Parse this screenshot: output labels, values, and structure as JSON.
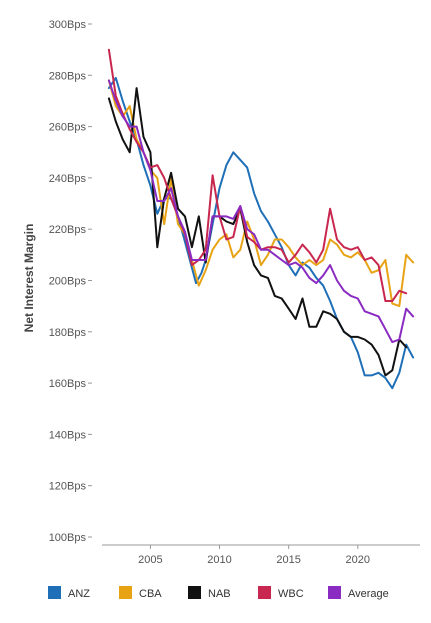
{
  "chart_data": {
    "type": "line",
    "title": "",
    "xlabel": "",
    "ylabel": "Net Interest Margin",
    "ylim": [
      100,
      300
    ],
    "xlim": [
      2001.5,
      2024.5
    ],
    "y_ticks": [
      100,
      120,
      140,
      160,
      180,
      200,
      220,
      240,
      260,
      280,
      300
    ],
    "y_tick_labels": [
      "100Bps",
      "120Bps",
      "140Bps",
      "160Bps",
      "180Bps",
      "200Bps",
      "220Bps",
      "240Bps",
      "260Bps",
      "280Bps",
      "300Bps"
    ],
    "x_ticks": [
      2005,
      2010,
      2015,
      2020
    ],
    "x_tick_labels": [
      "2005",
      "2010",
      "2015",
      "2020"
    ],
    "grid": false,
    "legend_position": "bottom",
    "series": [
      {
        "name": "ANZ",
        "color": "#1f6fb8",
        "points": [
          [
            2002.0,
            275
          ],
          [
            2002.5,
            279
          ],
          [
            2003.0,
            270
          ],
          [
            2003.5,
            262
          ],
          [
            2004.0,
            255
          ],
          [
            2004.5,
            245
          ],
          [
            2005.0,
            237
          ],
          [
            2005.5,
            226
          ],
          [
            2006.0,
            232
          ],
          [
            2006.5,
            232
          ],
          [
            2007.0,
            225
          ],
          [
            2007.5,
            215
          ],
          [
            2008.0,
            205
          ],
          [
            2008.3,
            199
          ],
          [
            2008.7,
            203
          ],
          [
            2009.0,
            208
          ],
          [
            2009.5,
            222
          ],
          [
            2010.0,
            236
          ],
          [
            2010.5,
            245
          ],
          [
            2011.0,
            250
          ],
          [
            2011.5,
            247
          ],
          [
            2012.0,
            244
          ],
          [
            2012.5,
            234
          ],
          [
            2013.0,
            227
          ],
          [
            2013.5,
            223
          ],
          [
            2014.0,
            218
          ],
          [
            2014.5,
            213
          ],
          [
            2015.0,
            206
          ],
          [
            2015.5,
            202
          ],
          [
            2016.0,
            207
          ],
          [
            2016.5,
            205
          ],
          [
            2017.0,
            201
          ],
          [
            2017.5,
            198
          ],
          [
            2018.0,
            192
          ],
          [
            2018.5,
            185
          ],
          [
            2019.0,
            180
          ],
          [
            2019.5,
            178
          ],
          [
            2020.0,
            172
          ],
          [
            2020.5,
            163
          ],
          [
            2021.0,
            163
          ],
          [
            2021.5,
            164
          ],
          [
            2022.0,
            162
          ],
          [
            2022.5,
            158
          ],
          [
            2023.0,
            164
          ],
          [
            2023.5,
            175
          ],
          [
            2024.0,
            170
          ]
        ]
      },
      {
        "name": "CBA",
        "color": "#e8a315",
        "points": [
          [
            2002.0,
            278
          ],
          [
            2002.5,
            268
          ],
          [
            2003.0,
            264
          ],
          [
            2003.5,
            268
          ],
          [
            2004.0,
            255
          ],
          [
            2004.5,
            250
          ],
          [
            2005.0,
            243
          ],
          [
            2005.5,
            240
          ],
          [
            2006.0,
            222
          ],
          [
            2006.5,
            240
          ],
          [
            2007.0,
            222
          ],
          [
            2007.5,
            218
          ],
          [
            2008.0,
            208
          ],
          [
            2008.5,
            198
          ],
          [
            2009.0,
            204
          ],
          [
            2009.5,
            212
          ],
          [
            2010.0,
            216
          ],
          [
            2010.5,
            218
          ],
          [
            2011.0,
            209
          ],
          [
            2011.5,
            212
          ],
          [
            2012.0,
            223
          ],
          [
            2012.5,
            216
          ],
          [
            2013.0,
            206
          ],
          [
            2013.5,
            210
          ],
          [
            2014.0,
            216
          ],
          [
            2014.5,
            216
          ],
          [
            2015.0,
            213
          ],
          [
            2015.5,
            209
          ],
          [
            2016.0,
            206
          ],
          [
            2016.5,
            208
          ],
          [
            2017.0,
            206
          ],
          [
            2017.5,
            208
          ],
          [
            2018.0,
            216
          ],
          [
            2018.5,
            214
          ],
          [
            2019.0,
            210
          ],
          [
            2019.5,
            209
          ],
          [
            2020.0,
            211
          ],
          [
            2020.5,
            208
          ],
          [
            2021.0,
            203
          ],
          [
            2021.5,
            204
          ],
          [
            2022.0,
            208
          ],
          [
            2022.5,
            191
          ],
          [
            2023.0,
            190
          ],
          [
            2023.5,
            210
          ],
          [
            2024.0,
            207
          ]
        ]
      },
      {
        "name": "NAB",
        "color": "#111111",
        "points": [
          [
            2002.0,
            271
          ],
          [
            2002.5,
            262
          ],
          [
            2003.0,
            255
          ],
          [
            2003.5,
            250
          ],
          [
            2004.0,
            275
          ],
          [
            2004.5,
            256
          ],
          [
            2005.0,
            250
          ],
          [
            2005.5,
            213
          ],
          [
            2006.0,
            232
          ],
          [
            2006.5,
            242
          ],
          [
            2007.0,
            228
          ],
          [
            2007.5,
            225
          ],
          [
            2008.0,
            213
          ],
          [
            2008.5,
            225
          ],
          [
            2009.0,
            207
          ],
          [
            2009.5,
            225
          ],
          [
            2010.0,
            225
          ],
          [
            2010.5,
            223
          ],
          [
            2011.0,
            222
          ],
          [
            2011.5,
            228
          ],
          [
            2012.0,
            215
          ],
          [
            2012.5,
            206
          ],
          [
            2013.0,
            202
          ],
          [
            2013.5,
            201
          ],
          [
            2014.0,
            194
          ],
          [
            2014.5,
            193
          ],
          [
            2015.0,
            189
          ],
          [
            2015.5,
            185
          ],
          [
            2016.0,
            193
          ],
          [
            2016.5,
            182
          ],
          [
            2017.0,
            182
          ],
          [
            2017.5,
            188
          ],
          [
            2018.0,
            187
          ],
          [
            2018.5,
            185
          ],
          [
            2019.0,
            180
          ],
          [
            2019.5,
            178
          ],
          [
            2020.0,
            178
          ],
          [
            2020.5,
            177
          ],
          [
            2021.0,
            175
          ],
          [
            2021.5,
            171
          ],
          [
            2022.0,
            163
          ],
          [
            2022.5,
            165
          ],
          [
            2023.0,
            177
          ],
          [
            2023.5,
            174
          ]
        ]
      },
      {
        "name": "WBC",
        "color": "#c8284f",
        "points": [
          [
            2002.0,
            290
          ],
          [
            2002.5,
            272
          ],
          [
            2003.0,
            265
          ],
          [
            2003.5,
            259
          ],
          [
            2004.0,
            254
          ],
          [
            2004.5,
            250
          ],
          [
            2005.0,
            244
          ],
          [
            2005.5,
            245
          ],
          [
            2006.0,
            240
          ],
          [
            2006.5,
            232
          ],
          [
            2007.0,
            225
          ],
          [
            2007.5,
            218
          ],
          [
            2008.0,
            206
          ],
          [
            2008.5,
            208
          ],
          [
            2009.0,
            212
          ],
          [
            2009.5,
            241
          ],
          [
            2010.0,
            225
          ],
          [
            2010.5,
            216
          ],
          [
            2011.0,
            217
          ],
          [
            2011.5,
            229
          ],
          [
            2012.0,
            217
          ],
          [
            2012.5,
            215
          ],
          [
            2013.0,
            212
          ],
          [
            2013.5,
            213
          ],
          [
            2014.0,
            213
          ],
          [
            2014.5,
            212
          ],
          [
            2015.0,
            207
          ],
          [
            2015.5,
            210
          ],
          [
            2016.0,
            214
          ],
          [
            2016.5,
            211
          ],
          [
            2017.0,
            207
          ],
          [
            2017.5,
            212
          ],
          [
            2018.0,
            228
          ],
          [
            2018.5,
            216
          ],
          [
            2019.0,
            213
          ],
          [
            2019.5,
            212
          ],
          [
            2020.0,
            213
          ],
          [
            2020.5,
            208
          ],
          [
            2021.0,
            209
          ],
          [
            2021.5,
            206
          ],
          [
            2022.0,
            192
          ],
          [
            2022.5,
            192
          ],
          [
            2023.0,
            196
          ],
          [
            2023.5,
            195
          ]
        ]
      },
      {
        "name": "Average",
        "color": "#8a2bc2",
        "points": [
          [
            2002.0,
            278
          ],
          [
            2002.5,
            270
          ],
          [
            2003.0,
            264
          ],
          [
            2003.5,
            260
          ],
          [
            2004.0,
            260
          ],
          [
            2004.5,
            250
          ],
          [
            2005.0,
            243
          ],
          [
            2005.5,
            231
          ],
          [
            2006.0,
            231
          ],
          [
            2006.5,
            236
          ],
          [
            2007.0,
            225
          ],
          [
            2007.5,
            219
          ],
          [
            2008.0,
            208
          ],
          [
            2008.5,
            208
          ],
          [
            2009.0,
            208
          ],
          [
            2009.5,
            225
          ],
          [
            2010.0,
            225
          ],
          [
            2010.5,
            225
          ],
          [
            2011.0,
            224
          ],
          [
            2011.5,
            229
          ],
          [
            2012.0,
            220
          ],
          [
            2012.5,
            218
          ],
          [
            2013.0,
            212
          ],
          [
            2013.5,
            212
          ],
          [
            2014.0,
            210
          ],
          [
            2014.5,
            208
          ],
          [
            2015.0,
            206
          ],
          [
            2015.5,
            207
          ],
          [
            2016.0,
            205
          ],
          [
            2016.5,
            201
          ],
          [
            2017.0,
            199
          ],
          [
            2017.5,
            202
          ],
          [
            2018.0,
            206
          ],
          [
            2018.5,
            200
          ],
          [
            2019.0,
            196
          ],
          [
            2019.5,
            194
          ],
          [
            2020.0,
            193
          ],
          [
            2020.5,
            188
          ],
          [
            2021.0,
            187
          ],
          [
            2021.5,
            186
          ],
          [
            2022.0,
            181
          ],
          [
            2022.5,
            176
          ],
          [
            2023.0,
            177
          ],
          [
            2023.5,
            189
          ],
          [
            2024.0,
            186
          ]
        ]
      }
    ]
  }
}
